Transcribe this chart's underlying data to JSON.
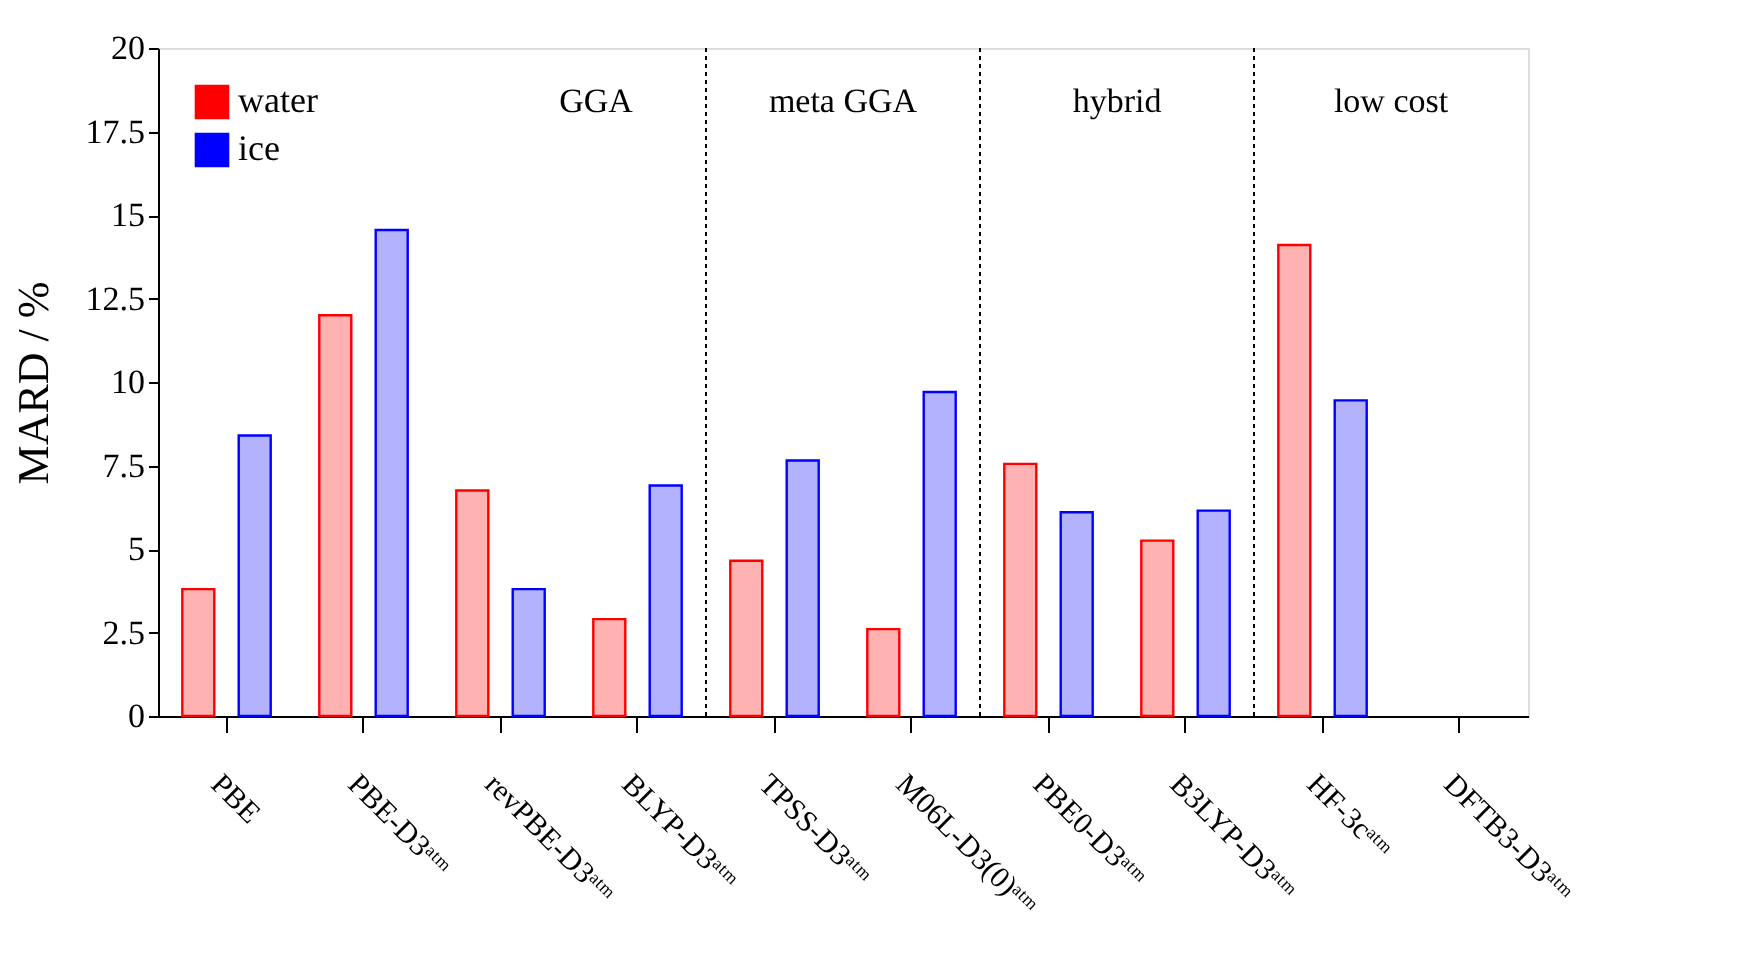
{
  "chart_data": {
    "type": "bar",
    "ylabel": "MARD / %",
    "categories": [
      "PBE",
      "PBE-D3ᵃᵗᵐ",
      "revPBE-D3ᵃᵗᵐ",
      "BLYP-D3ᵃᵗᵐ",
      "TPSS-D3ᵃᵗᵐ",
      "M06L-D3(0)ᵃᵗᵐ",
      "PBE0-D3ᵃᵗᵐ",
      "B3LYP-D3ᵃᵗᵐ",
      "HF-3cᵃᵗᵐ",
      "DFTB3-D3ᵃᵗᵐ"
    ],
    "series": [
      {
        "name": "water",
        "color": "#ff0000",
        "values": [
          3.8,
          12.0,
          6.75,
          2.9,
          4.65,
          2.6,
          7.55,
          5.25,
          14.1,
          null
        ]
      },
      {
        "name": "ice",
        "color": "#0000ff",
        "values": [
          8.4,
          14.55,
          3.8,
          6.9,
          7.65,
          9.7,
          6.1,
          6.15,
          9.45,
          null
        ]
      }
    ],
    "ylim": [
      0,
      20
    ],
    "yticks": [
      0,
      {
        "value": 2.5,
        "label": "2.5"
      },
      5,
      {
        "value": 7.5,
        "label": "7.5"
      },
      10,
      {
        "value": 12.5,
        "label": "12.5"
      },
      15,
      {
        "value": 17.5,
        "label": "17.5"
      },
      20
    ],
    "annotations": [
      "GGA",
      "meta GGA",
      "hybrid",
      "low cost"
    ],
    "legend": "top left",
    "grid": false
  }
}
